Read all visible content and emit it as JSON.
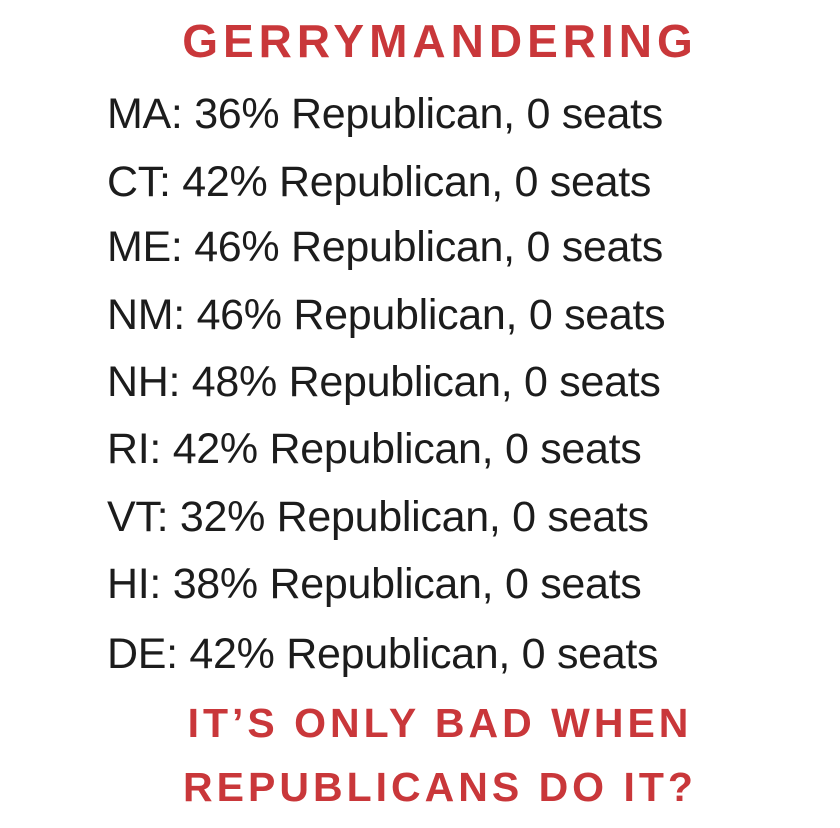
{
  "header": {
    "title": "GERRYMANDERING"
  },
  "rows": [
    "MA: 36% Republican, 0 seats",
    "CT: 42% Republican, 0 seats",
    "ME: 46% Republican, 0 seats",
    "NM: 46% Republican, 0 seats",
    "NH: 48% Republican, 0 seats",
    "RI: 42% Republican, 0 seats",
    "VT: 32% Republican, 0 seats",
    "HI: 38% Republican, 0 seats",
    "DE: 42% Republican, 0 seats"
  ],
  "footer": {
    "lines": [
      "IT’S ONLY BAD WHEN",
      "REPUBLICANS DO IT?"
    ]
  }
}
